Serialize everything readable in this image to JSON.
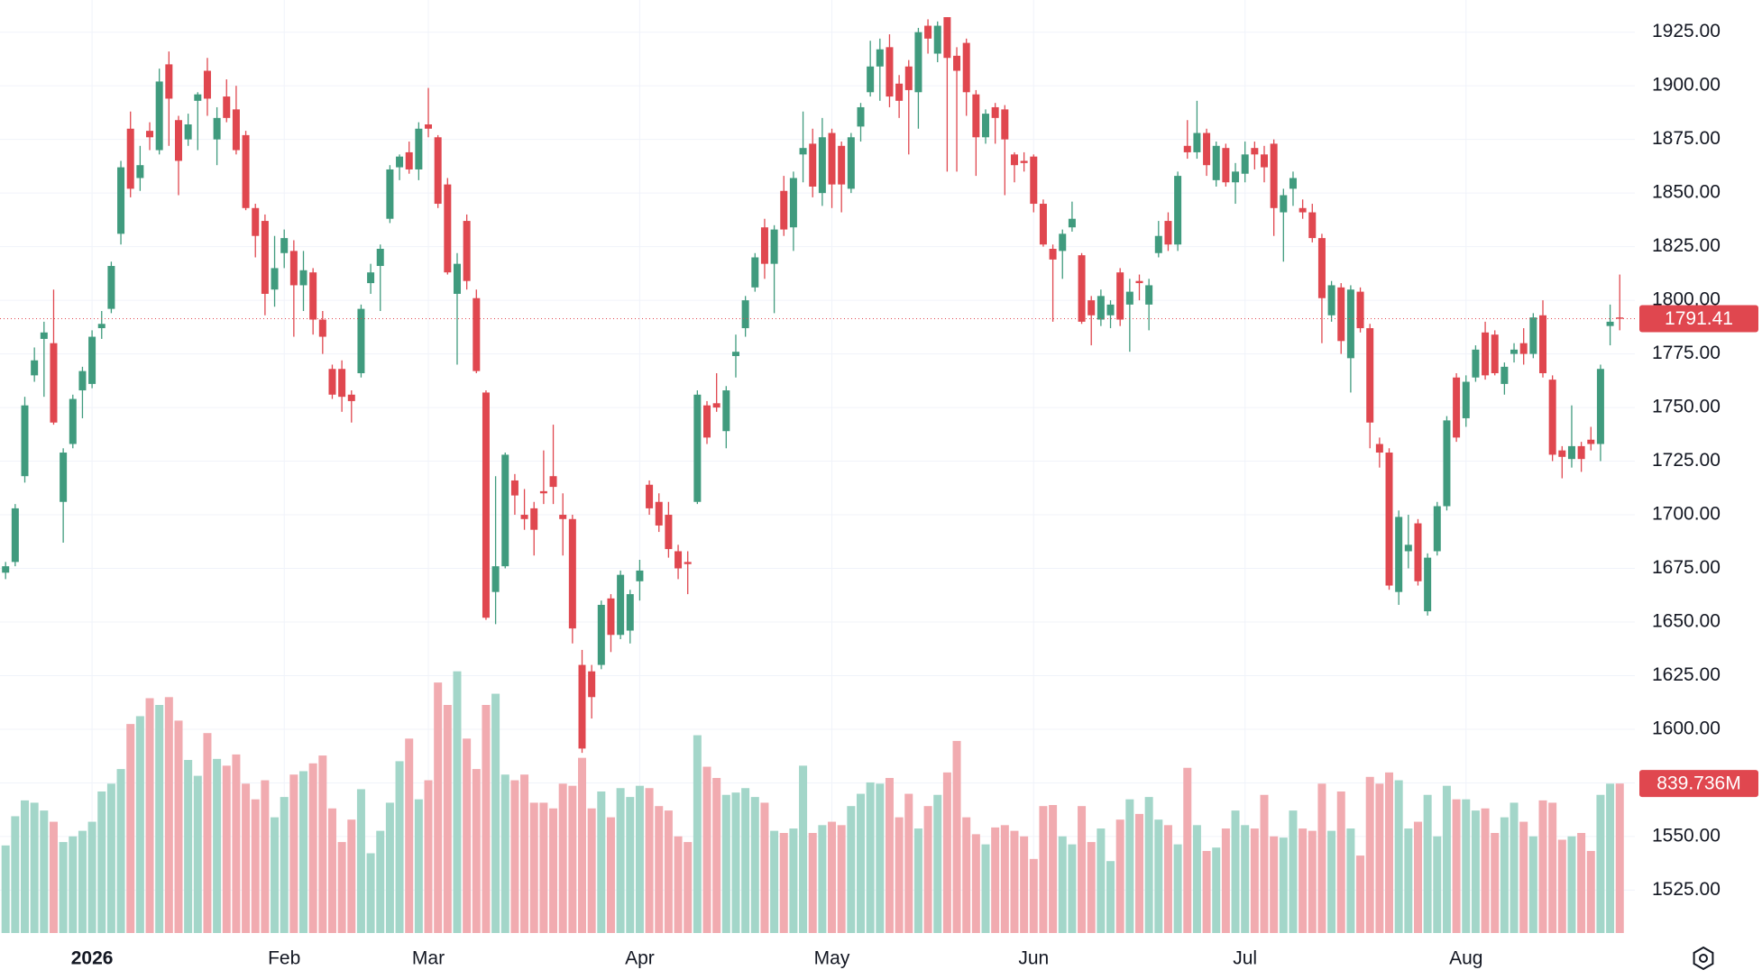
{
  "chart_data": {
    "type": "candlestick",
    "up_color": "#409b7e",
    "down_color": "#e0474f",
    "up_volume_color": "#a3d6c9",
    "down_volume_color": "#f1abb0",
    "grid": true,
    "ylim": [
      1505,
      1940
    ],
    "yticks": [
      {
        "value": 1525,
        "label": "1525.00"
      },
      {
        "value": 1550,
        "label": "1550.00"
      },
      {
        "value": 1575,
        "label": "1575.00"
      },
      {
        "value": 1600,
        "label": "1600.00"
      },
      {
        "value": 1625,
        "label": "1625.00"
      },
      {
        "value": 1650,
        "label": "1650.00"
      },
      {
        "value": 1675,
        "label": "1675.00"
      },
      {
        "value": 1700,
        "label": "1700.00"
      },
      {
        "value": 1725,
        "label": "1725.00"
      },
      {
        "value": 1750,
        "label": "1750.00"
      },
      {
        "value": 1775,
        "label": "1775.00"
      },
      {
        "value": 1800,
        "label": "1800.00"
      },
      {
        "value": 1825,
        "label": "1825.00"
      },
      {
        "value": 1850,
        "label": "1850.00"
      },
      {
        "value": 1875,
        "label": "1875.00"
      },
      {
        "value": 1900,
        "label": "1900.00"
      },
      {
        "value": 1925,
        "label": "1925.00"
      }
    ],
    "categories": [
      null,
      null,
      null,
      null,
      null,
      null,
      null,
      null,
      null,
      "2026",
      null,
      null,
      null,
      null,
      null,
      null,
      null,
      null,
      null,
      null,
      null,
      null,
      null,
      null,
      null,
      null,
      null,
      null,
      null,
      "Feb",
      null,
      null,
      null,
      null,
      null,
      null,
      null,
      null,
      null,
      null,
      null,
      null,
      null,
      null,
      "Mar",
      null,
      null,
      null,
      null,
      null,
      null,
      null,
      null,
      null,
      null,
      null,
      null,
      null,
      null,
      null,
      null,
      null,
      null,
      null,
      null,
      null,
      "Apr",
      null,
      null,
      null,
      null,
      null,
      null,
      null,
      null,
      null,
      null,
      null,
      null,
      null,
      null,
      null,
      null,
      null,
      null,
      null,
      "May",
      null,
      null,
      null,
      null,
      null,
      null,
      null,
      null,
      null,
      null,
      null,
      null,
      null,
      null,
      null,
      null,
      null,
      null,
      null,
      null,
      "Jun",
      null,
      null,
      null,
      null,
      null,
      null,
      null,
      null,
      null,
      null,
      null,
      null,
      null,
      null,
      null,
      null,
      null,
      null,
      null,
      null,
      null,
      "Jul",
      null,
      null,
      null,
      null,
      null,
      null,
      null,
      null,
      null,
      null,
      null,
      null,
      null,
      null,
      null,
      null,
      null,
      null,
      null,
      null,
      null,
      null,
      "Aug",
      null,
      null,
      null,
      null,
      null,
      null,
      null,
      null,
      null,
      null,
      null,
      null,
      null,
      null,
      null,
      null
    ],
    "open": [
      1673,
      1678,
      1718,
      1765,
      1782,
      1780,
      1706,
      1733,
      1758,
      1761,
      1787,
      1796,
      1831,
      1880,
      1857,
      1879,
      1870,
      1910,
      1884,
      1875,
      1893,
      1907,
      1875,
      1895,
      1889,
      1877,
      1843,
      1837,
      1805,
      1822,
      1823,
      1807,
      1813,
      1791,
      1768,
      1768,
      1756,
      1766,
      1808,
      1816,
      1838,
      1862,
      1869,
      1861,
      1882,
      1876,
      1854,
      1803,
      1837,
      1801,
      1757,
      1664,
      1676,
      1716,
      1700,
      1703,
      1711,
      1718,
      1700,
      1698,
      1630,
      1627,
      1630,
      1661,
      1644,
      1646,
      1669,
      1714,
      1706,
      1700,
      1683,
      1678,
      1706,
      1751,
      1752,
      1739,
      1774,
      1787,
      1806,
      1834,
      1817,
      1851,
      1834,
      1868,
      1873,
      1850,
      1878,
      1872,
      1852,
      1881,
      1897,
      1909,
      1918,
      1901,
      1909,
      1897,
      1928,
      1915,
      1932,
      1914,
      1920,
      1896,
      1876,
      1890,
      1889,
      1868,
      1865,
      1867,
      1845,
      1824,
      1823,
      1834,
      1821,
      1800,
      1791,
      1793,
      1813,
      1798,
      1809,
      1798,
      1822,
      1837,
      1826,
      1872,
      1869,
      1878,
      1856,
      1871,
      1855,
      1859,
      1871,
      1868,
      1873,
      1841,
      1852,
      1843,
      1841,
      1829,
      1793,
      1806,
      1773,
      1804,
      1787,
      1733,
      1729,
      1664,
      1683,
      1696,
      1655,
      1683,
      1704,
      1764,
      1745,
      1764,
      1785,
      1784,
      1761,
      1775,
      1780,
      1775,
      1793,
      1763,
      1730,
      1726,
      1732,
      1735,
      1733,
      1788,
      1792
    ],
    "high": [
      1678,
      1705,
      1755,
      1778,
      1790,
      1805,
      1731,
      1756,
      1769,
      1786,
      1795,
      1818,
      1865,
      1888,
      1872,
      1883,
      1908,
      1916,
      1886,
      1887,
      1897,
      1913,
      1890,
      1903,
      1900,
      1879,
      1845,
      1840,
      1830,
      1833,
      1828,
      1823,
      1815,
      1795,
      1770,
      1772,
      1758,
      1798,
      1817,
      1826,
      1863,
      1868,
      1874,
      1883,
      1899,
      1877,
      1857,
      1822,
      1840,
      1805,
      1758,
      1718,
      1729,
      1719,
      1712,
      1706,
      1730,
      1742,
      1710,
      1700,
      1637,
      1630,
      1660,
      1663,
      1674,
      1665,
      1679,
      1716,
      1710,
      1706,
      1686,
      1683,
      1758,
      1753,
      1766,
      1760,
      1784,
      1802,
      1822,
      1838,
      1835,
      1858,
      1860,
      1888,
      1880,
      1885,
      1880,
      1874,
      1878,
      1892,
      1921,
      1922,
      1924,
      1905,
      1912,
      1927,
      1931,
      1930,
      1932,
      1918,
      1922,
      1898,
      1889,
      1892,
      1891,
      1869,
      1869,
      1868,
      1847,
      1826,
      1833,
      1846,
      1822,
      1802,
      1805,
      1800,
      1815,
      1810,
      1812,
      1810,
      1837,
      1841,
      1860,
      1884,
      1893,
      1880,
      1874,
      1873,
      1864,
      1874,
      1874,
      1872,
      1875,
      1852,
      1860,
      1847,
      1845,
      1831,
      1809,
      1808,
      1807,
      1806,
      1789,
      1736,
      1731,
      1702,
      1700,
      1698,
      1682,
      1706,
      1746,
      1766,
      1765,
      1779,
      1790,
      1786,
      1771,
      1780,
      1787,
      1794,
      1800,
      1765,
      1732,
      1751,
      1734,
      1741,
      1770,
      1798,
      1812
    ],
    "low": [
      1670,
      1676,
      1715,
      1762,
      1755,
      1742,
      1687,
      1731,
      1745,
      1759,
      1782,
      1794,
      1826,
      1848,
      1851,
      1870,
      1868,
      1872,
      1849,
      1872,
      1870,
      1886,
      1863,
      1883,
      1868,
      1842,
      1820,
      1793,
      1797,
      1815,
      1783,
      1795,
      1784,
      1775,
      1754,
      1748,
      1743,
      1764,
      1803,
      1795,
      1836,
      1856,
      1859,
      1856,
      1876,
      1843,
      1812,
      1770,
      1805,
      1766,
      1651,
      1649,
      1675,
      1700,
      1693,
      1681,
      1705,
      1705,
      1681,
      1640,
      1589,
      1605,
      1628,
      1636,
      1642,
      1640,
      1660,
      1700,
      1692,
      1680,
      1670,
      1663,
      1705,
      1733,
      1748,
      1731,
      1764,
      1783,
      1804,
      1810,
      1794,
      1830,
      1823,
      1855,
      1848,
      1844,
      1843,
      1841,
      1850,
      1874,
      1895,
      1893,
      1890,
      1885,
      1868,
      1880,
      1915,
      1911,
      1860,
      1860,
      1886,
      1858,
      1873,
      1873,
      1849,
      1855,
      1860,
      1841,
      1825,
      1790,
      1810,
      1832,
      1789,
      1779,
      1788,
      1787,
      1788,
      1776,
      1800,
      1786,
      1820,
      1823,
      1823,
      1866,
      1866,
      1858,
      1853,
      1853,
      1845,
      1855,
      1861,
      1855,
      1830,
      1818,
      1844,
      1838,
      1827,
      1780,
      1790,
      1775,
      1757,
      1785,
      1731,
      1722,
      1665,
      1658,
      1675,
      1667,
      1653,
      1681,
      1702,
      1734,
      1741,
      1762,
      1763,
      1765,
      1756,
      1771,
      1770,
      1773,
      1764,
      1725,
      1717,
      1722,
      1720,
      1730,
      1725,
      1779,
      1786
    ],
    "close": [
      1676,
      1703,
      1751,
      1772,
      1785,
      1743,
      1729,
      1754,
      1767,
      1783,
      1789,
      1816,
      1862,
      1852,
      1863,
      1876,
      1902,
      1894,
      1865,
      1882,
      1896,
      1894,
      1885,
      1885,
      1870,
      1843,
      1830,
      1803,
      1815,
      1829,
      1807,
      1814,
      1791,
      1783,
      1756,
      1755,
      1753,
      1796,
      1813,
      1824,
      1861,
      1867,
      1861,
      1880,
      1880,
      1845,
      1813,
      1817,
      1809,
      1767,
      1652,
      1676,
      1728,
      1709,
      1698,
      1693,
      1710,
      1713,
      1698,
      1647,
      1591,
      1615,
      1658,
      1644,
      1672,
      1663,
      1674,
      1703,
      1695,
      1684,
      1675,
      1677,
      1756,
      1736,
      1750,
      1758,
      1776,
      1800,
      1820,
      1817,
      1833,
      1833,
      1857,
      1871,
      1853,
      1876,
      1854,
      1854,
      1876,
      1890,
      1909,
      1917,
      1895,
      1893,
      1898,
      1925,
      1922,
      1928,
      1913,
      1907,
      1897,
      1876,
      1887,
      1885,
      1875,
      1863,
      1864,
      1845,
      1826,
      1819,
      1831,
      1838,
      1790,
      1793,
      1802,
      1798,
      1791,
      1804,
      1808,
      1807,
      1830,
      1826,
      1858,
      1869,
      1878,
      1863,
      1872,
      1855,
      1860,
      1868,
      1868,
      1862,
      1843,
      1849,
      1857,
      1841,
      1829,
      1801,
      1807,
      1781,
      1805,
      1787,
      1743,
      1729,
      1667,
      1699,
      1686,
      1669,
      1680,
      1704,
      1744,
      1736,
      1762,
      1777,
      1765,
      1766,
      1769,
      1777,
      1775,
      1792,
      1766,
      1728,
      1727,
      1732,
      1726,
      1733,
      1768,
      1790,
      1791.41
    ],
    "volume": [
      492,
      656,
      745,
      732,
      688,
      625,
      511,
      543,
      574,
      625,
      795,
      839,
      921,
      1174,
      1218,
      1319,
      1281,
      1325,
      1193,
      972,
      883,
      1123,
      978,
      940,
      1003,
      839,
      751,
      858,
      650,
      764,
      890,
      909,
      953,
      997,
      700,
      511,
      637,
      808,
      448,
      574,
      732,
      965,
      1092,
      751,
      858,
      1407,
      1281,
      1470,
      1092,
      921,
      1281,
      1344,
      890,
      858,
      890,
      732,
      732,
      700,
      839,
      827,
      984,
      700,
      795,
      650,
      814,
      764,
      827,
      814,
      713,
      688,
      543,
      511,
      1111,
      934,
      871,
      776,
      789,
      814,
      764,
      732,
      574,
      562,
      587,
      940,
      562,
      606,
      625,
      606,
      713,
      782,
      846,
      839,
      871,
      650,
      782,
      587,
      713,
      776,
      902,
      1079,
      650,
      555,
      498,
      593,
      606,
      574,
      543,
      416,
      713,
      719,
      543,
      498,
      713,
      511,
      587,
      404,
      637,
      751,
      669,
      764,
      637,
      606,
      498,
      928,
      606,
      461,
      480,
      587,
      688,
      606,
      587,
      776,
      543,
      536,
      688,
      587,
      574,
      839,
      574,
      795,
      587,
      435,
      877,
      839,
      902,
      858,
      587,
      625,
      776,
      543,
      827,
      751,
      751,
      688,
      700,
      562,
      650,
      732,
      625,
      543,
      745,
      732,
      524,
      543,
      562,
      461,
      776,
      839,
      839.736
    ],
    "last_volume_label": "839.736M"
  }
}
